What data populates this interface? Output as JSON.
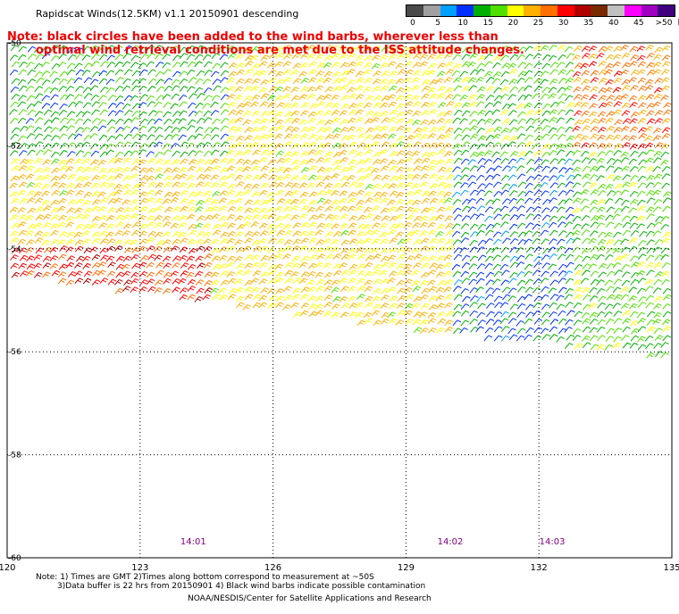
{
  "title": "Rapidscat Winds(12.5KM) v1.1 20150901 descending",
  "note": {
    "line1": "Note: black circles have been added to the wind barbs, wherever less than",
    "line2": "optimal wind retrieval conditions are met due to the ISS attitude changes."
  },
  "legend": {
    "unit_label": "knots",
    "ticks": [
      "0",
      "5",
      "10",
      "15",
      "20",
      "25",
      "30",
      "35",
      "40",
      "45",
      ">50"
    ],
    "colors": [
      "#4a4a4a",
      "#a0a0a0",
      "#00a0ff",
      "#0030ff",
      "#00b000",
      "#50e000",
      "#ffff00",
      "#ffb000",
      "#ff7000",
      "#ff0000",
      "#b00000",
      "#7a2a00",
      "#c0c0c0",
      "#ff00ff",
      "#a000c0",
      "#400080"
    ]
  },
  "chart_data": {
    "type": "map",
    "lat_ticks": [
      "-50",
      "-52",
      "-54",
      "-56",
      "-58",
      "-60"
    ],
    "lon_ticks": [
      "120",
      "123",
      "126",
      "129",
      "132",
      "135"
    ],
    "time_labels": [
      {
        "text": "14:01",
        "lon": 124.2
      },
      {
        "text": "14:02",
        "lon": 130.0
      },
      {
        "text": "14:03",
        "lon": 132.3
      }
    ],
    "lon_range": [
      120,
      135
    ],
    "lat_range": [
      -60,
      -50
    ],
    "grid": true,
    "swath_speed_knots": [
      {
        "region": "north-west",
        "speed": 15
      },
      {
        "region": "center",
        "speed": 22
      },
      {
        "region": "south-west edge",
        "speed": 30
      },
      {
        "region": "south-east",
        "speed": 12
      },
      {
        "region": "east",
        "speed": 17
      },
      {
        "region": "north-east",
        "speed": 27
      }
    ]
  },
  "footer": {
    "line1": "Note: 1) Times are GMT 2)Times along bottom correspond to measurement at ~50S",
    "line2": "3)Data buffer is 22 hrs from 20150901 4) Black wind barbs indicate possible contamination",
    "line3": "NOAA/NESDIS/Center for Satellite Applications and Research"
  }
}
